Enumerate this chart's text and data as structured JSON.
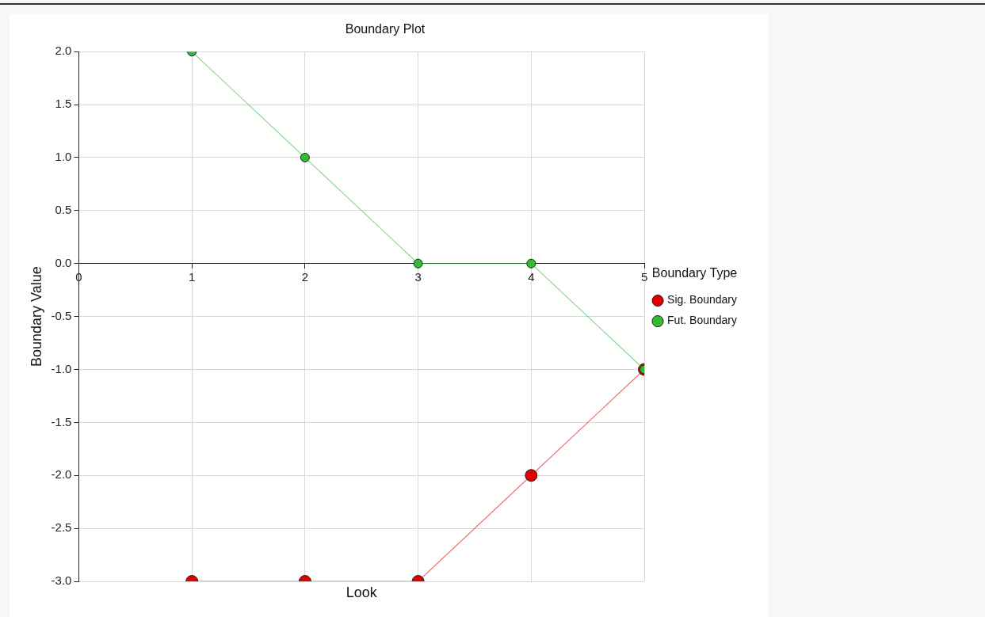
{
  "chart_data": {
    "type": "line",
    "title": "Boundary Plot",
    "xlabel": "Look",
    "ylabel": "Boundary Value",
    "legend_title": "Boundary Type",
    "x": [
      1,
      2,
      3,
      4,
      5
    ],
    "series": [
      {
        "name": "Sig. Boundary",
        "color": "#e00000",
        "values": [
          -3,
          -3,
          -3,
          -2,
          -1
        ]
      },
      {
        "name": "Fut. Boundary",
        "color": "#33bb33",
        "values": [
          2,
          1,
          0,
          0,
          -1
        ]
      }
    ],
    "xlim": [
      0,
      5
    ],
    "xticks": [
      0,
      1,
      2,
      3,
      4,
      5
    ],
    "ylim": [
      -3,
      2
    ],
    "yticks": [
      {
        "value": -3,
        "label": "-3.0"
      },
      {
        "value": -2.5,
        "label": "-2.5"
      },
      {
        "value": -2,
        "label": "-2.0"
      },
      {
        "value": -1.5,
        "label": "-1.5"
      },
      {
        "value": -1,
        "label": "-1.0"
      },
      {
        "value": -0.5,
        "label": "-0.5"
      },
      {
        "value": 0,
        "label": "0.0"
      },
      {
        "value": 0.5,
        "label": "0.5"
      },
      {
        "value": 1,
        "label": "1.0"
      },
      {
        "value": 1.5,
        "label": "1.5"
      },
      {
        "value": 2,
        "label": "2.0"
      }
    ],
    "grid": true,
    "legend": "right",
    "marker": "circle",
    "line_style": "solid"
  }
}
